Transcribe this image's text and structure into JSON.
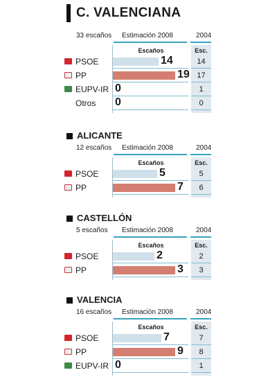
{
  "title": "C. VALENCIANA",
  "labels": {
    "estimate": "Estimación 2008",
    "year": "2004",
    "seats_col": "Escaños",
    "prev_col": "Esc."
  },
  "colors": {
    "PSOE": "#d0e0ea",
    "PP": "#d47e72",
    "EUPV-IR": "#d0e0ea",
    "Otros": "#d0e0ea"
  },
  "logos": {
    "PSOE": "#d3262c",
    "PP": "#e9eef2",
    "EUPV-IR": "#3b8a46",
    "Otros": ""
  },
  "chart_data": [
    {
      "type": "bar",
      "region": "C. VALENCIANA",
      "seats_label": "33 escaños",
      "categories": [
        "PSOE",
        "PP",
        "EUPV-IR",
        "Otros"
      ],
      "values": [
        14,
        19,
        0,
        0
      ],
      "prev": [
        14,
        17,
        1,
        0
      ],
      "xlim": [
        0,
        19
      ]
    },
    {
      "type": "bar",
      "region": "ALICANTE",
      "seats_label": "12 escaños",
      "categories": [
        "PSOE",
        "PP"
      ],
      "values": [
        5,
        7
      ],
      "prev": [
        5,
        6
      ],
      "xlim": [
        0,
        7
      ]
    },
    {
      "type": "bar",
      "region": "CASTELLÓN",
      "seats_label": "5 escaños",
      "categories": [
        "PSOE",
        "PP"
      ],
      "values": [
        2,
        3
      ],
      "prev": [
        2,
        3
      ],
      "xlim": [
        0,
        3
      ]
    },
    {
      "type": "bar",
      "region": "VALENCIA",
      "seats_label": "16 escaños",
      "categories": [
        "PSOE",
        "PP",
        "EUPV-IR"
      ],
      "values": [
        7,
        9,
        0
      ],
      "prev": [
        7,
        8,
        1
      ],
      "xlim": [
        0,
        9
      ]
    }
  ]
}
